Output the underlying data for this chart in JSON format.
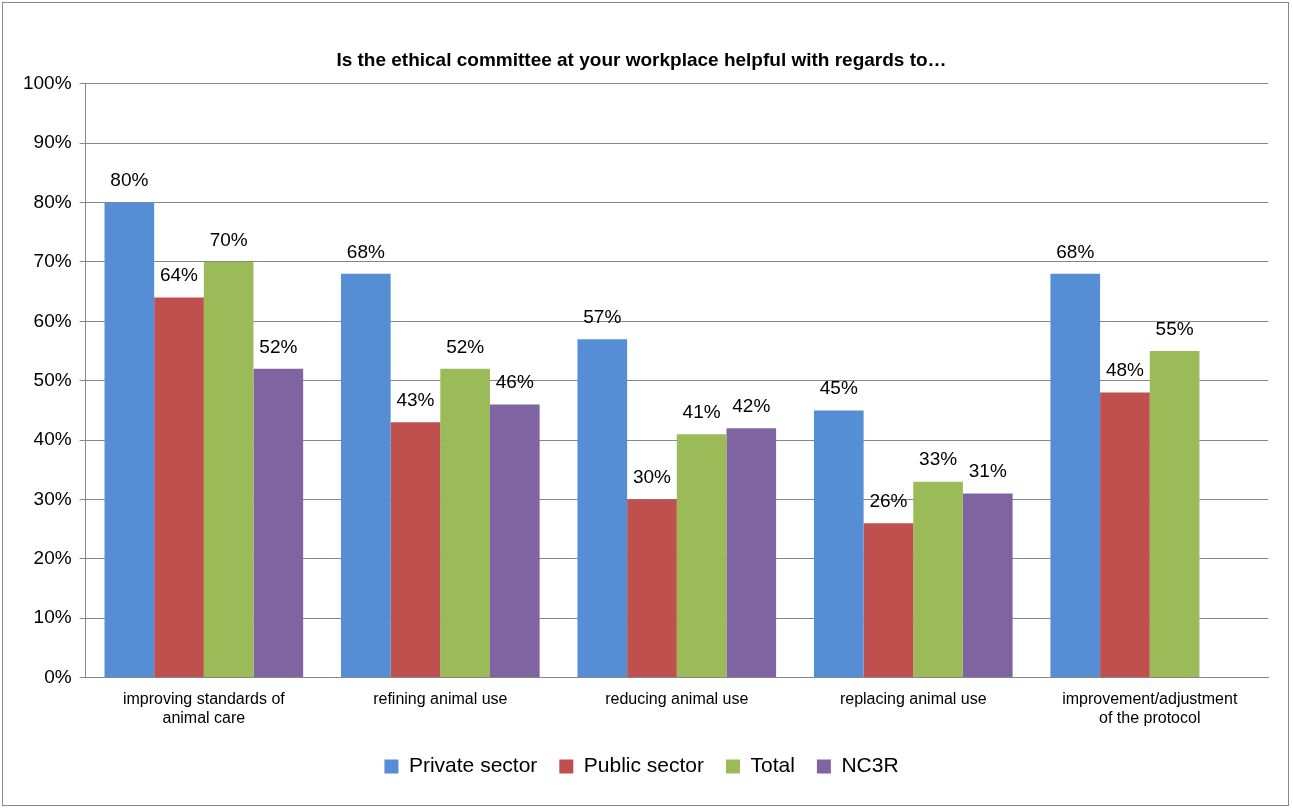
{
  "chart_data": {
    "type": "bar",
    "title": "Is the ethical committee at your workplace helpful with regards to…",
    "categories": [
      "improving standards of animal care",
      "refining animal use",
      "reducing animal use",
      "replacing animal use",
      "improvement/adjustment of the protocol"
    ],
    "series": [
      {
        "name": "Private sector",
        "color": "#558ed5",
        "values": [
          80,
          68,
          57,
          45,
          68
        ],
        "value_labels": [
          "80%",
          "68%",
          "57%",
          "45%",
          "68%"
        ]
      },
      {
        "name": "Public sector",
        "color": "#c0504d",
        "values": [
          64,
          43,
          30,
          26,
          48
        ],
        "value_labels": [
          "64%",
          "43%",
          "30%",
          "26%",
          "48%"
        ]
      },
      {
        "name": "Total",
        "color": "#9bbb59",
        "values": [
          70,
          52,
          41,
          33,
          55
        ],
        "value_labels": [
          "70%",
          "52%",
          "41%",
          "33%",
          "55%"
        ]
      },
      {
        "name": "NC3R",
        "color": "#8064a2",
        "values": [
          52,
          46,
          42,
          31,
          null
        ],
        "value_labels": [
          "52%",
          "46%",
          "42%",
          "31%",
          null
        ]
      }
    ],
    "ylim": [
      0,
      100
    ],
    "yticks": [
      {
        "value": 0,
        "label": "0%"
      },
      {
        "value": 10,
        "label": "10%"
      },
      {
        "value": 20,
        "label": "20%"
      },
      {
        "value": 30,
        "label": "30%"
      },
      {
        "value": 40,
        "label": "40%"
      },
      {
        "value": 50,
        "label": "50%"
      },
      {
        "value": 60,
        "label": "60%"
      },
      {
        "value": 70,
        "label": "70%"
      },
      {
        "value": 80,
        "label": "80%"
      },
      {
        "value": 90,
        "label": "90%"
      },
      {
        "value": 100,
        "label": "100%"
      }
    ],
    "grid": "y",
    "legend": "bottom"
  }
}
